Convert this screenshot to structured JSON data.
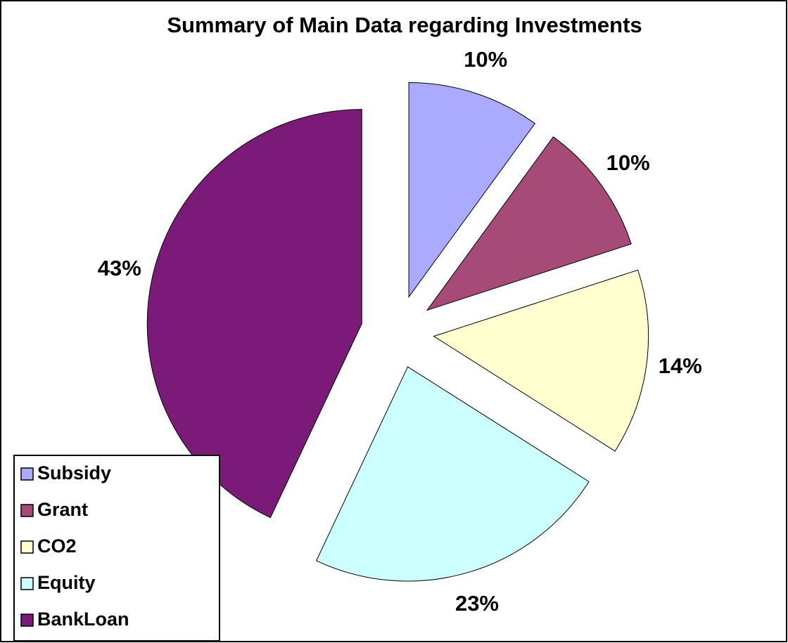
{
  "chart_data": {
    "type": "pie",
    "title": "Summary of Main Data regarding Investments",
    "categories": [
      "Subsidy",
      "Grant",
      "CO2",
      "Equity",
      "BankLoan"
    ],
    "values": [
      10,
      10,
      14,
      23,
      43
    ],
    "value_labels": [
      "10%",
      "10%",
      "14%",
      "23%",
      "43%"
    ],
    "colors": [
      "#aaaaff",
      "#a64a78",
      "#ffffd0",
      "#ccffff",
      "#7b1a78"
    ],
    "legend": "bottom-left",
    "exploded": true
  }
}
